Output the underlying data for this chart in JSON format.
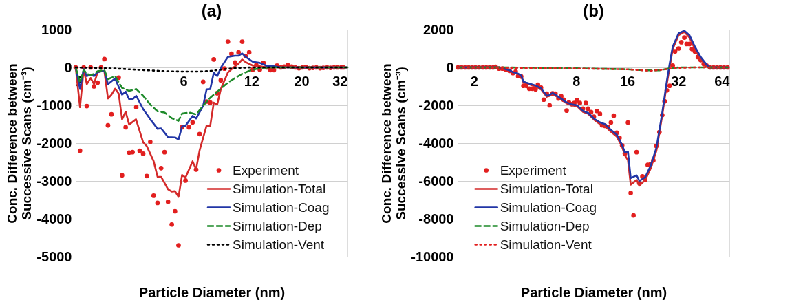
{
  "chart_data": [
    {
      "type": "line",
      "title": "(a)",
      "xlabel": "Particle Diameter (nm)",
      "ylabel": "Conc. Difference between Successive Scans (cm⁻³)",
      "xlim": [
        2,
        32
      ],
      "xticks": [
        2,
        6,
        12,
        20,
        32
      ],
      "ylim": [
        -5000,
        1000
      ],
      "yticks": [
        -5000,
        -4000,
        -3000,
        -2000,
        -1000,
        0,
        1000
      ],
      "log": "x",
      "grid": "y",
      "legend": "bottom right",
      "series": [
        {
          "name": "Experiment",
          "type": "scatter",
          "marker": "circle",
          "color": "#e21f1f",
          "x": [
            2,
            2.09,
            2.17,
            2.24,
            2.33,
            2.41,
            2.5,
            2.59,
            2.68,
            2.78,
            2.88,
            3.1,
            3.21,
            3.33,
            3.45,
            3.57,
            3.71,
            3.84,
            3.98,
            4.13,
            4.28,
            4.43,
            4.61,
            4.78,
            4.95,
            5.13,
            5.33,
            5.51,
            5.71,
            5.92,
            6.13,
            6.35,
            6.59,
            6.83,
            7.08,
            7.34,
            7.6,
            7.89,
            8.18,
            8.47,
            8.79,
            9.12,
            9.45,
            9.8,
            10.16,
            10.53,
            10.93,
            11.32,
            11.74,
            12.17,
            12.62,
            13.08,
            13.57,
            14.07,
            14.58,
            15.1,
            15.6,
            16.2,
            16.8,
            17.4,
            18.1,
            18.8,
            19.5,
            20.2,
            20.9,
            21.7,
            22.5,
            23.3,
            24.2,
            25.0,
            26.0,
            26.9,
            27.9,
            28.9,
            30.0,
            30.7
          ],
          "values": [
            0,
            -2200,
            0,
            -1020,
            0,
            -500,
            -400,
            0,
            220,
            -1530,
            -1240,
            -270,
            -2850,
            -1580,
            -2250,
            -2240,
            -1050,
            -2200,
            -2280,
            -2870,
            -1970,
            -3390,
            -3580,
            -2660,
            -2240,
            -3550,
            -4150,
            -3800,
            -4700,
            -1580,
            -2990,
            -1580,
            -1450,
            -2700,
            -1760,
            -380,
            -900,
            -930,
            210,
            -680,
            -340,
            -30,
            680,
            360,
            130,
            400,
            680,
            300,
            400,
            -60,
            60,
            -60,
            120,
            0,
            -70,
            -70,
            50,
            0,
            20,
            60,
            20,
            0,
            -20,
            0,
            10,
            -20,
            -10,
            0,
            -20,
            -10,
            0,
            -10,
            0,
            0,
            0,
            0
          ]
        },
        {
          "name": "Simulation-Total",
          "line_style": "solid",
          "color": "#d42a2a",
          "x": [
            2,
            2.09,
            2.17,
            2.24,
            2.33,
            2.41,
            2.5,
            2.59,
            2.68,
            2.78,
            2.88,
            2.99,
            3.1,
            3.21,
            3.33,
            3.45,
            3.7,
            3.98,
            4.13,
            4.43,
            4.61,
            4.78,
            5.13,
            5.33,
            5.51,
            5.71,
            5.92,
            6.13,
            6.59,
            6.83,
            7.08,
            7.6,
            7.89,
            8.18,
            8.47,
            8.79,
            9.45,
            10.16,
            10.53,
            10.93,
            11.32,
            12.17,
            13.08,
            14.07,
            32
          ],
          "values": [
            0,
            -1050,
            -50,
            -440,
            -280,
            -440,
            -130,
            -100,
            -100,
            -820,
            -720,
            -560,
            -690,
            -1370,
            -1170,
            -1510,
            -1370,
            -1980,
            -2080,
            -2480,
            -2890,
            -2890,
            -3220,
            -3280,
            -3270,
            -3420,
            -2840,
            -2910,
            -2480,
            -2690,
            -2190,
            -1540,
            -1540,
            -930,
            -980,
            -570,
            -130,
            30,
            100,
            210,
            140,
            50,
            30,
            0,
            0
          ]
        },
        {
          "name": "Simulation-Coag",
          "line_style": "solid",
          "color": "#2236a6",
          "x": [
            2,
            2.09,
            2.17,
            2.24,
            2.33,
            2.41,
            2.5,
            2.68,
            2.78,
            2.99,
            3.21,
            3.33,
            3.45,
            3.57,
            3.71,
            3.98,
            4.28,
            4.61,
            4.78,
            5.13,
            5.51,
            5.71,
            5.92,
            6.13,
            6.59,
            6.83,
            7.34,
            7.6,
            7.89,
            8.18,
            8.47,
            8.79,
            9.45,
            10.16,
            10.53,
            10.93,
            11.32,
            12.17,
            13.08,
            14.07,
            15.1,
            16.2,
            32
          ],
          "values": [
            0,
            -570,
            -40,
            -230,
            -190,
            -230,
            -120,
            -90,
            -440,
            -290,
            -720,
            -640,
            -840,
            -840,
            -750,
            -1100,
            -1370,
            -1620,
            -1610,
            -1840,
            -1850,
            -1900,
            -1560,
            -1540,
            -1280,
            -1350,
            -1010,
            -580,
            -570,
            -140,
            -230,
            -10,
            280,
            310,
            310,
            370,
            280,
            150,
            120,
            40,
            30,
            0,
            0
          ]
        },
        {
          "name": "Simulation-Dep",
          "line_style": "dashed",
          "color": "#1e8a2a",
          "x": [
            2,
            2.09,
            2.17,
            2.24,
            2.33,
            2.41,
            2.5,
            2.68,
            2.78,
            2.99,
            3.21,
            3.45,
            3.71,
            3.98,
            4.28,
            4.61,
            4.95,
            5.33,
            5.71,
            5.92,
            6.35,
            6.83,
            7.34,
            7.89,
            8.79,
            9.45,
            10.16,
            10.93,
            11.74,
            12.62,
            13.57,
            15.1,
            32
          ],
          "values": [
            0,
            -400,
            -60,
            -170,
            -200,
            -170,
            -100,
            -70,
            -310,
            -230,
            -540,
            -620,
            -570,
            -750,
            -980,
            -1160,
            -1190,
            -1340,
            -1410,
            -1220,
            -1190,
            -1240,
            -1010,
            -800,
            -560,
            -400,
            -280,
            -170,
            -90,
            -40,
            -10,
            0,
            0
          ]
        },
        {
          "name": "Simulation-Vent",
          "line_style": "dotted",
          "color": "#000000",
          "x": [
            2,
            3,
            4,
            5,
            6,
            7,
            8,
            9,
            10,
            12,
            32
          ],
          "values": [
            0,
            -30,
            -70,
            -100,
            -110,
            -110,
            -90,
            -50,
            -20,
            0,
            0
          ]
        }
      ]
    },
    {
      "type": "line",
      "title": "(b)",
      "xlabel": "Particle Diameter (nm)",
      "ylabel": "Conc. Difference between Successive Scans (cm⁻³)",
      "xlim": [
        1.6,
        64
      ],
      "xticks": [
        2,
        8,
        16,
        32,
        64
      ],
      "ylim": [
        -10000,
        2000
      ],
      "yticks": [
        -10000,
        -8000,
        -6000,
        -4000,
        -2000,
        0,
        2000
      ],
      "log": "x",
      "grid": "y",
      "legend": "bottom left",
      "series": [
        {
          "name": "Experiment",
          "type": "scatter",
          "marker": "circle",
          "color": "#e21f1f",
          "x": [
            1.61,
            1.69,
            1.77,
            1.86,
            1.95,
            2.04,
            2.14,
            2.25,
            2.36,
            2.47,
            2.59,
            2.68,
            2.81,
            2.94,
            3.09,
            3.24,
            3.39,
            3.52,
            3.64,
            3.79,
            3.91,
            4.06,
            4.23,
            4.41,
            4.61,
            4.76,
            4.96,
            5.15,
            5.37,
            5.58,
            5.81,
            6.04,
            6.29,
            6.53,
            6.74,
            7.03,
            7.25,
            7.53,
            7.8,
            8.1,
            8.41,
            8.77,
            9.11,
            9.4,
            9.79,
            10.17,
            10.6,
            11.05,
            11.37,
            11.84,
            12.34,
            12.82,
            13.32,
            13.88,
            14.41,
            14.93,
            15.5,
            16.16,
            16.77,
            17.42,
            18.16,
            18.86,
            19.66,
            20.42,
            21.14,
            21.96,
            22.8,
            23.77,
            24.76,
            25.72,
            26.56,
            27.4,
            28.46,
            29.66,
            30.61,
            32.11,
            33.34,
            34.75,
            35.85,
            37.25,
            38.56,
            40.06,
            41.75,
            43.35,
            45.19,
            46.95,
            49.2,
            51.6,
            54.1,
            56.7,
            59.5,
            62.4
          ],
          "values": [
            0,
            0,
            0,
            0,
            0,
            0,
            0,
            0,
            0,
            0,
            0,
            30,
            -60,
            -60,
            -120,
            -180,
            -300,
            -220,
            -460,
            -480,
            -970,
            -970,
            -1120,
            -1120,
            -1150,
            -910,
            -1070,
            -1700,
            -1390,
            -2000,
            -1370,
            -1390,
            -1640,
            -1520,
            -1700,
            -2280,
            -1850,
            -1940,
            -1880,
            -1730,
            -1880,
            -2180,
            -1880,
            -2180,
            -2360,
            -2600,
            -2300,
            -2460,
            -3050,
            -3090,
            -3150,
            -2910,
            -2550,
            -3450,
            -3720,
            -4120,
            -4550,
            -2910,
            -6640,
            -7820,
            -4480,
            -6120,
            -5760,
            -5940,
            -5150,
            -5120,
            -4910,
            -4150,
            -3420,
            -2520,
            -1790,
            -1210,
            -970,
            100,
            850,
            1000,
            1330,
            1580,
            1240,
            1240,
            970,
            850,
            550,
            390,
            180,
            100,
            0,
            0,
            0,
            0,
            0,
            0
          ]
        },
        {
          "name": "Simulation-Total",
          "line_style": "solid",
          "color": "#d42a2a",
          "x": [
            1.61,
            2.81,
            2.94,
            3.09,
            3.24,
            3.39,
            3.64,
            3.79,
            3.91,
            4.06,
            4.41,
            4.61,
            4.96,
            5.37,
            5.58,
            5.81,
            6.29,
            7.03,
            7.53,
            8.1,
            8.77,
            9.4,
            10.17,
            11.05,
            11.84,
            12.82,
            13.88,
            14.93,
            15.5,
            16.16,
            16.77,
            18.16,
            18.86,
            20.42,
            21.96,
            23.77,
            25.72,
            27.4,
            28.46,
            29.66,
            32.11,
            34.75,
            37.25,
            40.06,
            43.35,
            46.95,
            49.2,
            62.4
          ],
          "values": [
            0,
            0,
            -30,
            -100,
            -160,
            -260,
            -350,
            -450,
            -800,
            -840,
            -950,
            -1000,
            -1150,
            -1550,
            -1500,
            -1400,
            -1600,
            -1900,
            -2000,
            -2050,
            -2350,
            -2450,
            -2750,
            -3000,
            -3100,
            -3400,
            -3650,
            -4200,
            -4650,
            -4900,
            -6200,
            -5950,
            -6250,
            -5950,
            -5350,
            -4400,
            -2550,
            -850,
            0,
            970,
            1700,
            1880,
            1580,
            970,
            420,
            100,
            0,
            0
          ]
        },
        {
          "name": "Simulation-Coag",
          "line_style": "solid",
          "color": "#2236a6",
          "x": [
            1.61,
            2.81,
            2.94,
            3.09,
            3.24,
            3.39,
            3.64,
            3.79,
            3.91,
            4.06,
            4.41,
            4.61,
            4.96,
            5.37,
            5.58,
            5.81,
            6.29,
            7.03,
            7.53,
            8.1,
            8.77,
            9.4,
            10.17,
            11.05,
            11.84,
            12.82,
            13.88,
            14.93,
            15.5,
            16.16,
            16.77,
            18.16,
            18.86,
            20.42,
            21.96,
            23.77,
            25.72,
            27.4,
            28.46,
            29.66,
            32.11,
            34.75,
            37.25,
            40.06,
            43.35,
            46.95,
            49.2,
            62.4
          ],
          "values": [
            0,
            0,
            -30,
            -100,
            -150,
            -250,
            -330,
            -420,
            -750,
            -800,
            -900,
            -950,
            -1100,
            -1500,
            -1450,
            -1350,
            -1550,
            -1850,
            -1950,
            -2000,
            -2300,
            -2400,
            -2700,
            -2900,
            -3000,
            -3300,
            -3550,
            -4100,
            -4500,
            -4450,
            -5850,
            -5700,
            -6000,
            -5800,
            -5200,
            -4250,
            -2400,
            -700,
            200,
            1100,
            1800,
            1940,
            1700,
            1100,
            550,
            150,
            0,
            0
          ]
        },
        {
          "name": "Simulation-Dep",
          "line_style": "dashed",
          "color": "#1e8a2a",
          "x": [
            1.61,
            3.09,
            8.1,
            16.16,
            20.42,
            24.76,
            28.46,
            32.11,
            62.4
          ],
          "values": [
            0,
            0,
            -50,
            -100,
            -150,
            -150,
            -50,
            0,
            0
          ]
        },
        {
          "name": "Simulation-Vent",
          "line_style": "dotted",
          "color": "#e21f1f",
          "x": [
            1.61,
            8.1,
            16.16,
            21.96,
            25.72,
            30.61,
            40.06,
            62.4
          ],
          "values": [
            0,
            -60,
            -100,
            -180,
            -120,
            -30,
            0,
            0
          ]
        }
      ]
    }
  ]
}
